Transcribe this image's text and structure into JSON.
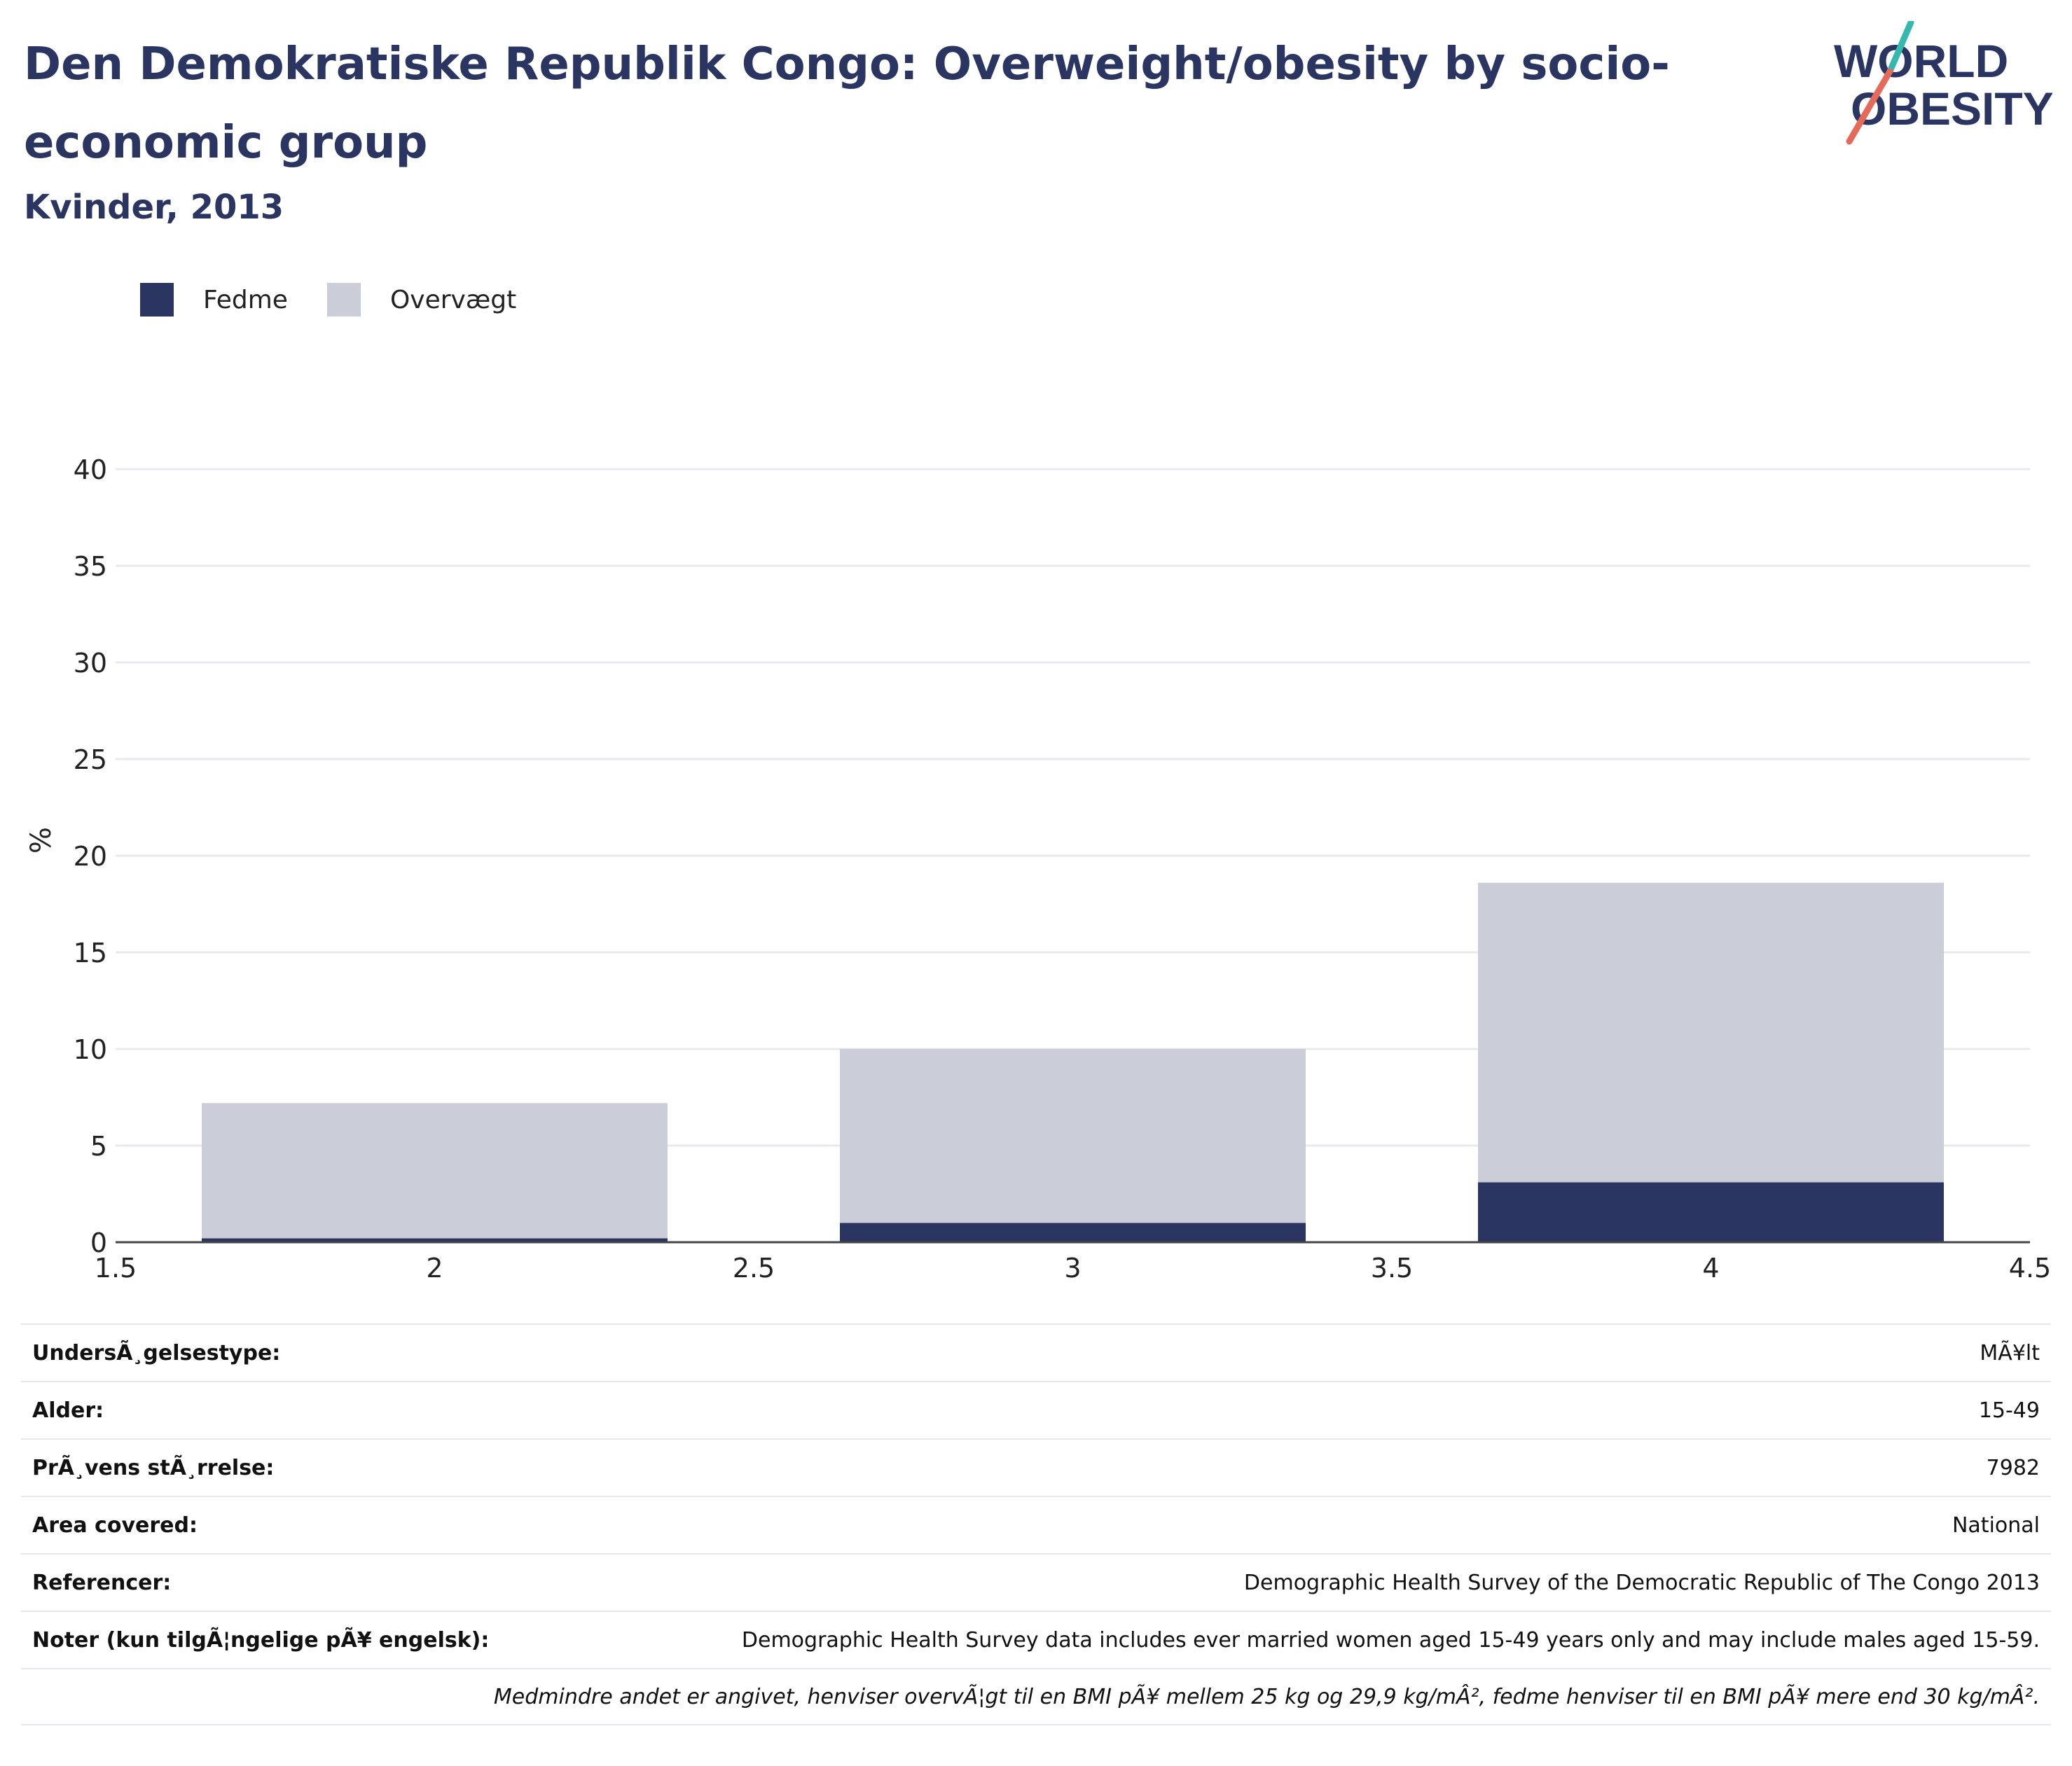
{
  "header": {
    "title": "Den Demokratiske Republik Congo: Overweight/obesity by socio-economic group",
    "subtitle": "Kvinder, 2013"
  },
  "logo": {
    "line1": "WORLD",
    "line2": "OBESITY"
  },
  "colors": {
    "obesity": "#2a3561",
    "overweight": "#cbcdd8",
    "grid": "#e9eaef",
    "axis": "#444444"
  },
  "chart_data": {
    "type": "bar",
    "stacked": true,
    "x": [
      2,
      3,
      4
    ],
    "series": [
      {
        "name": "Fedme",
        "values": [
          0.2,
          1.0,
          3.1
        ]
      },
      {
        "name": "Overvægt",
        "values": [
          7.0,
          9.0,
          15.5
        ]
      }
    ],
    "xlim": [
      1.5,
      4.5
    ],
    "ylim": [
      0,
      40
    ],
    "xticks": [
      1.5,
      2,
      2.5,
      3,
      3.5,
      4,
      4.5
    ],
    "xtick_labels": [
      "1.5",
      "2",
      "2.5",
      "3",
      "3.5",
      "4",
      "4.5"
    ],
    "yticks": [
      0,
      5,
      10,
      15,
      20,
      25,
      30,
      35,
      40
    ],
    "ytick_labels": [
      "0",
      "5",
      "10",
      "15",
      "20",
      "25",
      "30",
      "35",
      "40"
    ],
    "ylabel": "%",
    "xlabel": "",
    "grid": true,
    "legend_position": "top-left"
  },
  "info": {
    "rows": [
      {
        "label": "UndersÃ¸gelsestype:",
        "value": "MÃ¥lt"
      },
      {
        "label": "Alder:",
        "value": "15-49"
      },
      {
        "label": "PrÃ¸vens stÃ¸rrelse:",
        "value": "7982"
      },
      {
        "label": "Area covered:",
        "value": "National"
      },
      {
        "label": "Referencer:",
        "value": "Demographic Health Survey of the Democratic Republic of The Congo 2013"
      },
      {
        "label": "Noter (kun tilgÃ¦ngelige pÃ¥ engelsk):",
        "value": "Demographic Health Survey data includes ever married women aged 15-49 years only and may include males aged 15-59."
      }
    ],
    "footnote": "Medmindre andet er angivet, henviser overvÃ¦gt til en BMI pÃ¥ mellem 25 kg og 29,9 kg/mÂ², fedme henviser til en BMI pÃ¥ mere end 30 kg/mÂ²."
  }
}
